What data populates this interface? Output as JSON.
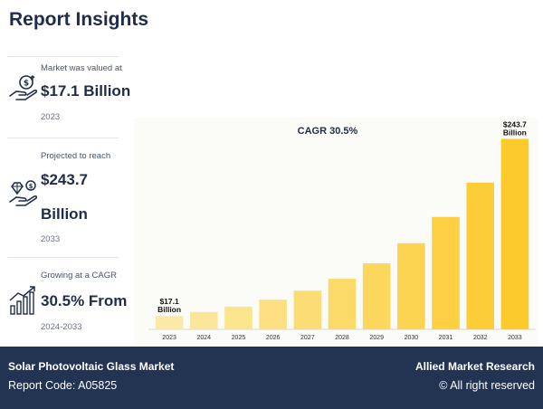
{
  "header": {
    "title": "Report Insights"
  },
  "stats": [
    {
      "label": "Market was valued at",
      "value_lines": [
        "$17.1 Billion"
      ],
      "year": "2023",
      "icon": "money-hand-icon"
    },
    {
      "label": "Projected to reach",
      "value_lines": [
        "$243.7",
        "Billion"
      ],
      "year": "2033",
      "icon": "diamond-hand-icon"
    },
    {
      "label": "Growing at a CAGR",
      "value_lines": [
        "30.5% From"
      ],
      "year": "2024-2033",
      "icon": "growth-chart-icon"
    }
  ],
  "chart_data": {
    "type": "bar",
    "title": "CAGR 30.5%",
    "categories": [
      "2023",
      "2024",
      "2025",
      "2026",
      "2027",
      "2028",
      "2029",
      "2030",
      "2031",
      "2032",
      "2033"
    ],
    "values": [
      17.1,
      22.3,
      29.1,
      38.0,
      49.6,
      64.7,
      84.4,
      110.2,
      143.8,
      187.7,
      243.7
    ],
    "ylim": [
      0,
      250
    ],
    "grid": false,
    "annotations": [
      {
        "category": "2023",
        "lines": [
          "$17.1",
          "Billion"
        ]
      },
      {
        "category": "2033",
        "lines": [
          "$243.7",
          "Billion"
        ]
      }
    ],
    "colors": {
      "light": "#fbeaa6",
      "dark": "#fdca2c"
    }
  },
  "footer": {
    "title": "Solar Photovoltaic Glass Market",
    "report_code": "Report Code: A05825",
    "brand": "Allied Market Research",
    "rights": "© All right reserved"
  }
}
